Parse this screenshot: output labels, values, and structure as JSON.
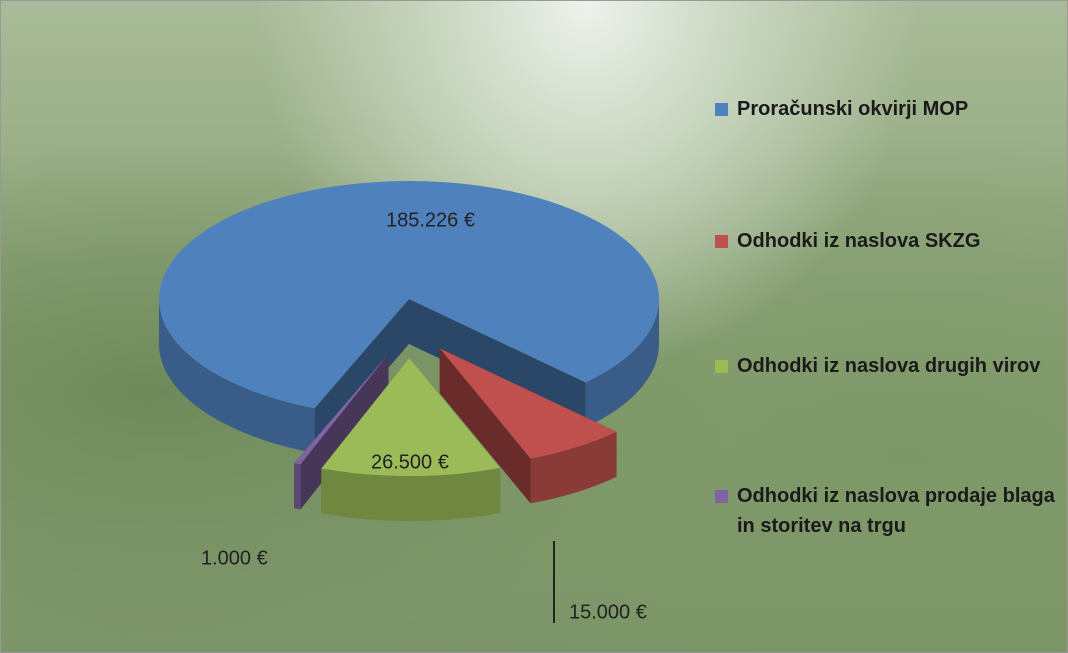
{
  "chart_data": {
    "type": "pie3d",
    "categories": [
      "Proračunski okvirji MOP",
      "Odhodki iz naslova SKZG",
      "Odhodki iz naslova drugih virov",
      "Odhodki iz naslova prodaje blaga in storitev na trgu"
    ],
    "values": [
      185226,
      15000,
      26500,
      1000
    ],
    "value_labels": [
      "185.226 €",
      "15.000 €",
      "26.500 €",
      "1.000 €"
    ],
    "colors": [
      "#4f81bd",
      "#c0504d",
      "#9bbb59",
      "#8064a2"
    ]
  }
}
